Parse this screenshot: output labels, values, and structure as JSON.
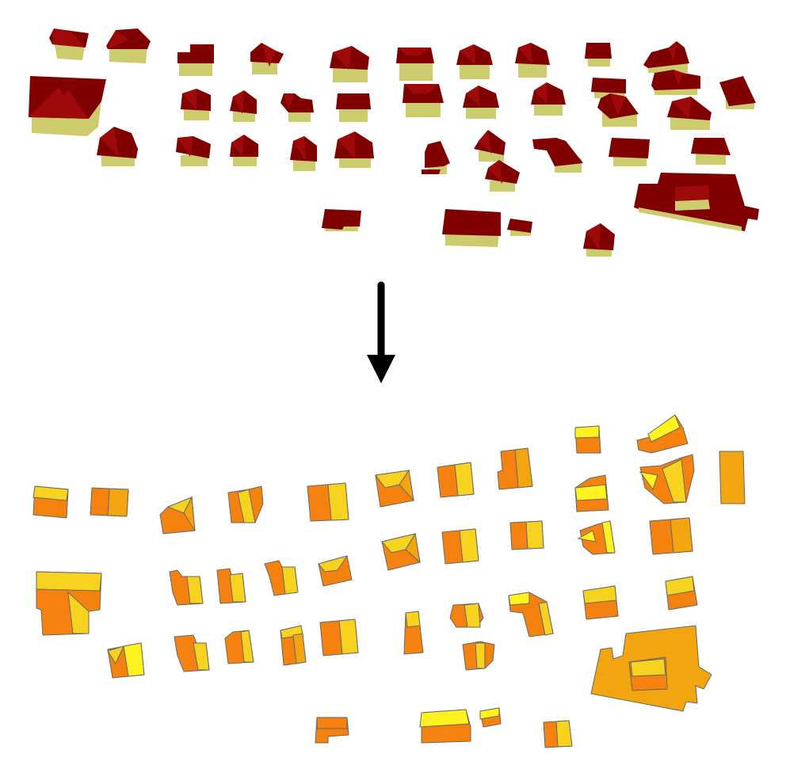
{
  "colors": {
    "roof_dark": "#800000",
    "roof_light": "#9e0a0a",
    "wall": "#cccc6e",
    "plan_orange": "#f5820f",
    "plan_yellow": "#f7d21e",
    "plan_amber": "#f2a50f",
    "plan_light": "#fff21e",
    "arrow": "#000000"
  },
  "icons": {
    "arrow": "down-arrow-icon"
  },
  "scene_3d": {
    "label": "",
    "buildings": [
      {
        "roof": "gable"
      },
      {
        "roof": "gable"
      },
      {
        "roof": "hip"
      },
      {
        "roof": "gable"
      },
      {
        "roof": "gable"
      },
      {
        "roof": "gable"
      },
      {
        "roof": "gable"
      },
      {
        "roof": "gable"
      },
      {
        "roof": "gable"
      },
      {
        "roof": "flat"
      },
      {
        "roof": "complex"
      },
      {
        "roof": "complex"
      },
      {
        "roof": "gable"
      },
      {
        "roof": "gable"
      },
      {
        "roof": "gable"
      },
      {
        "roof": "gable"
      },
      {
        "roof": "gable"
      },
      {
        "roof": "gable"
      },
      {
        "roof": "gable"
      },
      {
        "roof": "gable"
      },
      {
        "roof": "gable"
      },
      {
        "roof": "gable"
      },
      {
        "roof": "gable"
      },
      {
        "roof": "gable"
      },
      {
        "roof": "hip"
      },
      {
        "roof": "gable"
      },
      {
        "roof": "gable"
      },
      {
        "roof": "gable"
      },
      {
        "roof": "gable"
      },
      {
        "roof": "gable"
      },
      {
        "roof": "gable"
      },
      {
        "roof": "gable"
      },
      {
        "roof": "gable"
      },
      {
        "roof": "gable"
      },
      {
        "roof": "gable"
      },
      {
        "roof": "complex"
      },
      {
        "roof": "flat"
      },
      {
        "roof": "flat"
      },
      {
        "roof": "flat"
      },
      {
        "roof": "hip"
      }
    ]
  },
  "plan_2d": {
    "label": ""
  }
}
